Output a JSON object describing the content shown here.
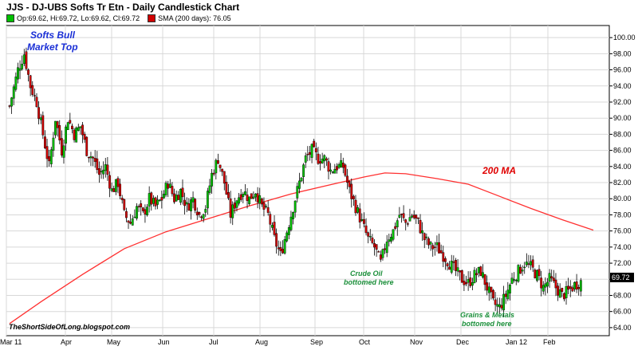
{
  "title": "JJS - DJ-UBS Softs Tr Etn - Daily Candlestick Chart",
  "legend": {
    "ohlc": "Op:69.62, Hi:69.72, Lo:69.62, Cl:69.72",
    "sma": "SMA (200 days): 76.05"
  },
  "colors": {
    "up": "#00c000",
    "down": "#d00000",
    "sma": "#ff3030",
    "grid": "#d8d8d8",
    "plot_bg": "#ffffff",
    "label_bg": "#000000"
  },
  "annotations": {
    "top_line1": "Softs Bull",
    "top_line2": "Market Top",
    "ma_label": "200 MA",
    "crude_line1": "Crude Oil",
    "crude_line2": "bottomed here",
    "grains_line1": "Grains & Metals",
    "grains_line2": "bottomed here",
    "watermark": "TheShortSideOfLong.blogspot.com"
  },
  "chart_data": {
    "type": "candlestick",
    "title": "JJS - DJ-UBS Softs Tr Etn - Daily Candlestick Chart",
    "ylim": [
      63,
      101.5
    ],
    "y_ticks": [
      "64.00",
      "66.00",
      "68.00",
      "70.00",
      "72.00",
      "74.00",
      "76.00",
      "78.00",
      "80.00",
      "82.00",
      "84.00",
      "86.00",
      "88.00",
      "90.00",
      "92.00",
      "94.00",
      "96.00",
      "98.00",
      "100.00"
    ],
    "last_price_label": "69.72",
    "last_price": 69.72,
    "x_labels": [
      "Mar 11",
      "Apr",
      "May",
      "Jun",
      "Jul",
      "Aug",
      "Sep",
      "Oct",
      "Nov",
      "Dec",
      "Jan 12",
      "Feb"
    ],
    "grid": true,
    "series": [
      {
        "name": "SMA (200 days)",
        "type": "line",
        "points": [
          [
            0,
            64.5
          ],
          [
            15,
            67.2
          ],
          [
            35,
            70.6
          ],
          [
            55,
            73.8
          ],
          [
            75,
            75.9
          ],
          [
            95,
            77.5
          ],
          [
            115,
            79.1
          ],
          [
            135,
            80.6
          ],
          [
            155,
            81.8
          ],
          [
            170,
            82.7
          ],
          [
            180,
            83.2
          ],
          [
            190,
            83.1
          ],
          [
            205,
            82.5
          ],
          [
            220,
            81.8
          ],
          [
            235,
            80.3
          ],
          [
            250,
            78.8
          ],
          [
            265,
            77.4
          ],
          [
            280,
            76.1
          ]
        ]
      },
      {
        "name": "JJS",
        "type": "candlestick",
        "close_path": [
          [
            0,
            91.5
          ],
          [
            4,
            96
          ],
          [
            7,
            98
          ],
          [
            10,
            94
          ],
          [
            13,
            92
          ],
          [
            16,
            88
          ],
          [
            19,
            84
          ],
          [
            22,
            90
          ],
          [
            25,
            86
          ],
          [
            28,
            90
          ],
          [
            31,
            88
          ],
          [
            34,
            89
          ],
          [
            37,
            86
          ],
          [
            40,
            85
          ],
          [
            43,
            83
          ],
          [
            46,
            84
          ],
          [
            49,
            81
          ],
          [
            52,
            82
          ],
          [
            55,
            78
          ],
          [
            58,
            77
          ],
          [
            61,
            79
          ],
          [
            64,
            78
          ],
          [
            67,
            80
          ],
          [
            70,
            79
          ],
          [
            73,
            80
          ],
          [
            76,
            82
          ],
          [
            79,
            80
          ],
          [
            82,
            81
          ],
          [
            85,
            79
          ],
          [
            88,
            80
          ],
          [
            91,
            78
          ],
          [
            94,
            79
          ],
          [
            97,
            83
          ],
          [
            100,
            85
          ],
          [
            103,
            82
          ],
          [
            106,
            78
          ],
          [
            109,
            80
          ],
          [
            112,
            81
          ],
          [
            115,
            80
          ],
          [
            118,
            81
          ],
          [
            121,
            79
          ],
          [
            124,
            78
          ],
          [
            127,
            75
          ],
          [
            130,
            73
          ],
          [
            133,
            76
          ],
          [
            136,
            79
          ],
          [
            139,
            82
          ],
          [
            142,
            85
          ],
          [
            145,
            86
          ],
          [
            148,
            85
          ],
          [
            151,
            85
          ],
          [
            154,
            83.5
          ],
          [
            157,
            84
          ],
          [
            160,
            84
          ],
          [
            163,
            81
          ],
          [
            166,
            79
          ],
          [
            169,
            77
          ],
          [
            172,
            75
          ],
          [
            175,
            74
          ],
          [
            178,
            72
          ],
          [
            181,
            75
          ],
          [
            184,
            76
          ],
          [
            187,
            78
          ],
          [
            190,
            77
          ],
          [
            193,
            78
          ],
          [
            196,
            77
          ],
          [
            199,
            75
          ],
          [
            202,
            74
          ],
          [
            205,
            74
          ],
          [
            208,
            73
          ],
          [
            211,
            72
          ],
          [
            214,
            71
          ],
          [
            217,
            70
          ],
          [
            220,
            69.5
          ],
          [
            223,
            70.5
          ],
          [
            226,
            71
          ],
          [
            229,
            69
          ],
          [
            232,
            67
          ],
          [
            235,
            66.5
          ],
          [
            238,
            68
          ],
          [
            241,
            70
          ],
          [
            244,
            71
          ],
          [
            247,
            72
          ],
          [
            250,
            71.5
          ],
          [
            253,
            70.5
          ],
          [
            256,
            69
          ],
          [
            259,
            70
          ],
          [
            262,
            69
          ],
          [
            265,
            68
          ],
          [
            268,
            68.5
          ],
          [
            271,
            69.3
          ],
          [
            274,
            69.72
          ]
        ]
      }
    ],
    "x_domain": [
      0,
      280
    ]
  }
}
